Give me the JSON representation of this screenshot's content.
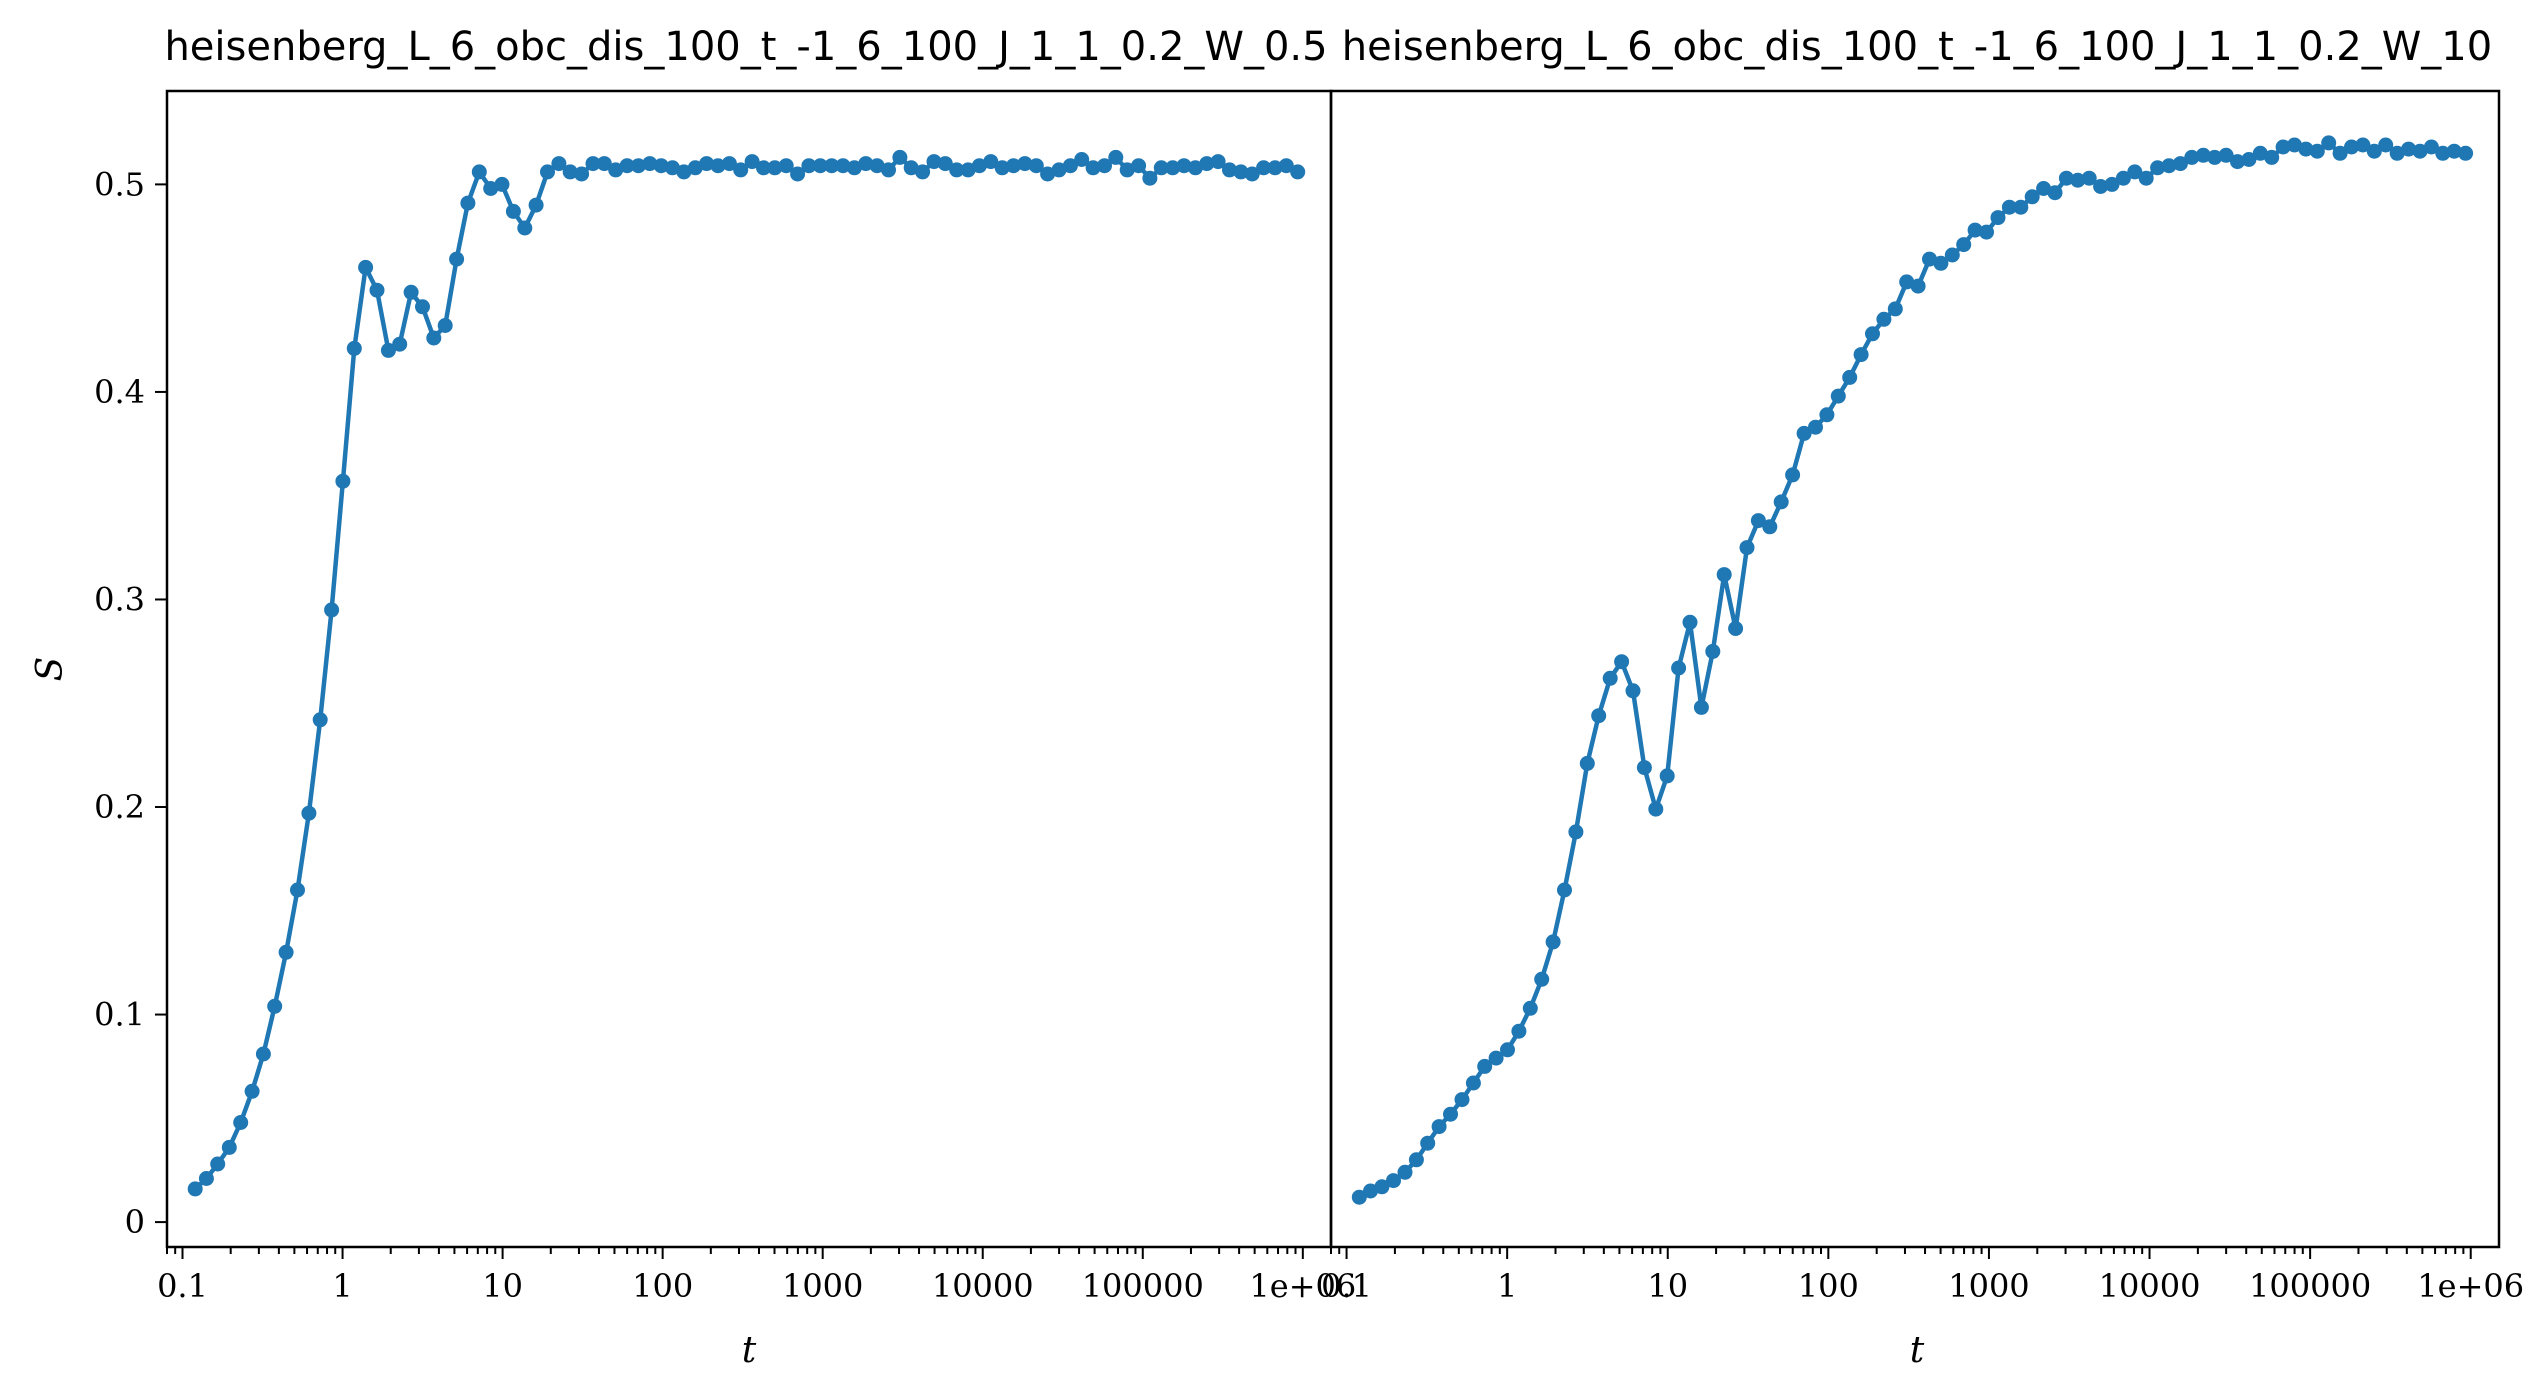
{
  "chart_data": [
    {
      "type": "line",
      "title": "heisenberg_L_6_obc_dis_100_t_-1_6_100_J_1_1_0.2_W_0.5",
      "xlabel": "t",
      "ylabel": "S",
      "xscale": "log",
      "xlim": [
        0.08,
        1500000.0
      ],
      "ylim": [
        -0.012,
        0.545
      ],
      "xticks": [
        0.1,
        1,
        10,
        100,
        1000,
        10000,
        100000,
        1000000
      ],
      "xtick_labels": [
        "0.1",
        "1",
        "10",
        "100",
        "1000",
        "10000",
        "100000",
        "1e+06"
      ],
      "yticks": [
        0,
        0.1,
        0.2,
        0.3,
        0.4,
        0.5
      ],
      "ytick_labels": [
        "0",
        "0.1",
        "0.2",
        "0.3",
        "0.4",
        "0.5"
      ],
      "grid": false,
      "series": [
        {
          "color": "#1f77b4",
          "x": [
            0.12,
            0.141,
            0.166,
            0.196,
            0.231,
            0.272,
            0.32,
            0.377,
            0.444,
            0.523,
            0.616,
            0.725,
            0.854,
            1.005,
            1.184,
            1.394,
            1.642,
            1.933,
            2.277,
            2.681,
            3.157,
            3.718,
            4.379,
            5.157,
            6.073,
            7.152,
            8.423,
            9.919,
            11.68,
            13.76,
            16.2,
            19.08,
            22.47,
            26.46,
            31.16,
            36.7,
            43.22,
            50.9,
            59.94,
            70.59,
            83.13,
            97.9,
            115.3,
            135.8,
            159.9,
            188.3,
            221.8,
            261.2,
            307.6,
            362.2,
            426.6,
            502.4,
            591.6,
            696.7,
            820.5,
            966.3,
            1138,
            1340,
            1578,
            1859,
            2189,
            2578,
            3036,
            3575,
            4210,
            4958,
            5839,
            6877,
            8098,
            9537,
            11231,
            13227,
            15577,
            18344,
            21603,
            25442,
            29961,
            35285,
            41554,
            48936,
            57630,
            67869,
            79927,
            94127,
            110850,
            130544,
            153737,
            181050,
            213216,
            251097,
            295708,
            348244,
            410114,
            482975,
            568779,
            669828,
            788830,
            928974
          ],
          "values": [
            0.016,
            0.021,
            0.028,
            0.036,
            0.048,
            0.063,
            0.081,
            0.104,
            0.13,
            0.16,
            0.197,
            0.242,
            0.295,
            0.357,
            0.421,
            0.46,
            0.449,
            0.42,
            0.423,
            0.448,
            0.441,
            0.426,
            0.432,
            0.464,
            0.491,
            0.506,
            0.498,
            0.5,
            0.487,
            0.479,
            0.49,
            0.506,
            0.51,
            0.506,
            0.505,
            0.51,
            0.51,
            0.507,
            0.509,
            0.509,
            0.51,
            0.509,
            0.508,
            0.506,
            0.508,
            0.51,
            0.509,
            0.51,
            0.507,
            0.511,
            0.508,
            0.508,
            0.509,
            0.505,
            0.509,
            0.509,
            0.509,
            0.509,
            0.508,
            0.51,
            0.509,
            0.507,
            0.513,
            0.508,
            0.506,
            0.511,
            0.51,
            0.507,
            0.507,
            0.509,
            0.511,
            0.508,
            0.509,
            0.51,
            0.509,
            0.505,
            0.507,
            0.509,
            0.512,
            0.508,
            0.509,
            0.513,
            0.507,
            0.509,
            0.503,
            0.508,
            0.508,
            0.509,
            0.508,
            0.51,
            0.511,
            0.507,
            0.506,
            0.505,
            0.508,
            0.508,
            0.509,
            0.506
          ]
        }
      ]
    },
    {
      "type": "line",
      "title": "heisenberg_L_6_obc_dis_100_t_-1_6_100_J_1_1_0.2_W_10",
      "xlabel": "t",
      "ylabel": "",
      "xscale": "log",
      "xlim": [
        0.08,
        1500000.0
      ],
      "ylim": [
        -0.012,
        0.545
      ],
      "xticks": [
        0.1,
        1,
        10,
        100,
        1000,
        10000,
        100000,
        1000000
      ],
      "xtick_labels": [
        "0.1",
        "1",
        "10",
        "100",
        "1000",
        "10000",
        "100000",
        "1e+06"
      ],
      "grid": false,
      "series": [
        {
          "color": "#1f77b4",
          "x": [
            0.12,
            0.141,
            0.166,
            0.196,
            0.231,
            0.272,
            0.32,
            0.377,
            0.444,
            0.523,
            0.616,
            0.725,
            0.854,
            1.005,
            1.184,
            1.394,
            1.642,
            1.933,
            2.277,
            2.681,
            3.157,
            3.718,
            4.379,
            5.157,
            6.073,
            7.152,
            8.423,
            9.919,
            11.68,
            13.76,
            16.2,
            19.08,
            22.47,
            26.46,
            31.16,
            36.7,
            43.22,
            50.9,
            59.94,
            70.59,
            83.13,
            97.9,
            115.3,
            135.8,
            159.9,
            188.3,
            221.8,
            261.2,
            307.6,
            362.2,
            426.6,
            502.4,
            591.6,
            696.7,
            820.5,
            966.3,
            1138,
            1340,
            1578,
            1859,
            2189,
            2578,
            3036,
            3575,
            4210,
            4958,
            5839,
            6877,
            8098,
            9537,
            11231,
            13227,
            15577,
            18344,
            21603,
            25442,
            29961,
            35285,
            41554,
            48936,
            57630,
            67869,
            79927,
            94127,
            110850,
            130544,
            153737,
            181050,
            213216,
            251097,
            295708,
            348244,
            410114,
            482975,
            568779,
            669828,
            788830,
            928974
          ],
          "values": [
            0.012,
            0.015,
            0.017,
            0.02,
            0.024,
            0.03,
            0.038,
            0.046,
            0.052,
            0.059,
            0.067,
            0.075,
            0.079,
            0.083,
            0.092,
            0.103,
            0.117,
            0.135,
            0.16,
            0.188,
            0.221,
            0.244,
            0.262,
            0.27,
            0.256,
            0.219,
            0.199,
            0.215,
            0.267,
            0.289,
            0.248,
            0.275,
            0.312,
            0.286,
            0.325,
            0.338,
            0.335,
            0.347,
            0.36,
            0.38,
            0.383,
            0.389,
            0.398,
            0.407,
            0.418,
            0.428,
            0.435,
            0.44,
            0.453,
            0.451,
            0.464,
            0.462,
            0.466,
            0.471,
            0.478,
            0.477,
            0.484,
            0.489,
            0.489,
            0.494,
            0.498,
            0.496,
            0.503,
            0.502,
            0.503,
            0.499,
            0.5,
            0.503,
            0.506,
            0.503,
            0.508,
            0.509,
            0.51,
            0.513,
            0.514,
            0.513,
            0.514,
            0.511,
            0.512,
            0.515,
            0.513,
            0.518,
            0.519,
            0.517,
            0.516,
            0.52,
            0.515,
            0.518,
            0.519,
            0.516,
            0.519,
            0.515,
            0.517,
            0.516,
            0.518,
            0.515,
            0.516,
            0.515
          ]
        }
      ]
    }
  ]
}
